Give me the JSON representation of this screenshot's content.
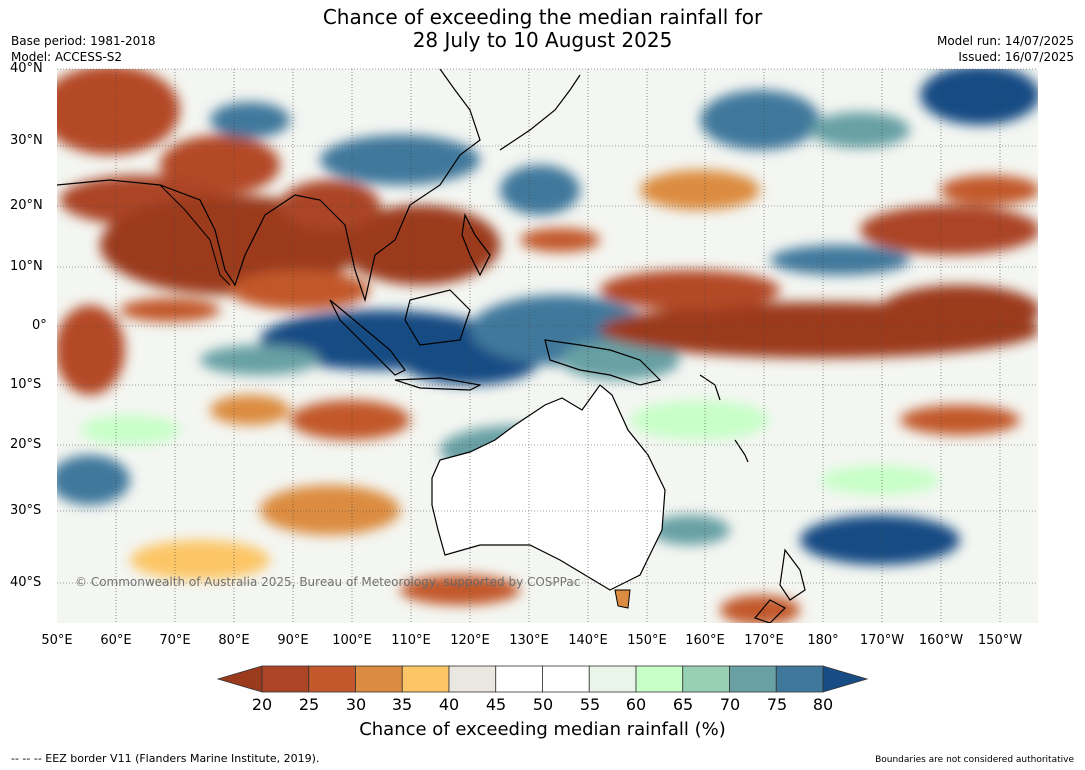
{
  "title_line1": "Chance of exceeding the median rainfall for",
  "title_line2": "28 July to 10 August 2025",
  "base_period": "Base period: 1981-2018",
  "model": "Model: ACCESS-S2",
  "model_run": "Model run: 14/07/2025",
  "issued": "Issued: 16/07/2025",
  "lat_labels": [
    "40°N",
    "30°N",
    "20°N",
    "10°N",
    "0°",
    "10°S",
    "20°S",
    "30°S",
    "40°S"
  ],
  "lon_labels": [
    "50°E",
    "60°E",
    "70°E",
    "80°E",
    "90°E",
    "100°E",
    "110°E",
    "120°E",
    "130°E",
    "140°E",
    "150°E",
    "160°E",
    "170°E",
    "180°",
    "170°W",
    "160°W",
    "150°W"
  ],
  "copyright": "© Commonwealth of Australia 2025, Bureau of Meteorology, supported by COSPPac",
  "colorbar": {
    "ticks": [
      "20",
      "25",
      "30",
      "35",
      "40",
      "45",
      "50",
      "55",
      "60",
      "65",
      "70",
      "75",
      "80"
    ],
    "colors": [
      "#9c3a1e",
      "#ac4425",
      "#c2582c",
      "#dc8c40",
      "#fcc666",
      "#eae6e0",
      "#ffffff",
      "#ffffff",
      "#e8f5e8",
      "#c8ffc8",
      "#98d0b4",
      "#68a0a4",
      "#40789c",
      "#184c84"
    ],
    "title": "Chance of exceeding median rainfall (%)"
  },
  "footnote_left": "--  --  -- EEZ border V11 (Flanders Marine Institute, 2019).",
  "footnote_right": "Boundaries are not considered authoritative"
}
